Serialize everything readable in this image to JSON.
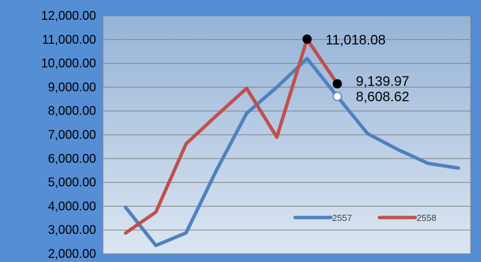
{
  "chart_data": {
    "type": "line",
    "title": "",
    "xlabel": "",
    "ylabel": "",
    "ylim": [
      2000,
      12000
    ],
    "yticks": [
      "2,000.00",
      "3,000.00",
      "4,000.00",
      "5,000.00",
      "6,000.00",
      "7,000.00",
      "8,000.00",
      "9,000.00",
      "10,000.00",
      "11,000.00",
      "12,000.00"
    ],
    "grid": true,
    "legend_position": "bottom-right",
    "x": [
      1,
      2,
      3,
      4,
      5,
      6,
      7,
      8,
      9,
      10,
      11,
      12
    ],
    "series": [
      {
        "name": "2557",
        "color": "#4F81BD",
        "values": [
          3950,
          2350,
          2880,
          5500,
          7900,
          9000,
          10200,
          8608.62,
          7050,
          6380,
          5800,
          5600
        ]
      },
      {
        "name": "2558",
        "color": "#C0504D",
        "values": [
          2870,
          3750,
          6620,
          7800,
          8950,
          6900,
          11018.08,
          9139.97,
          null,
          null,
          null,
          null
        ]
      }
    ],
    "annotations": [
      {
        "series": 1,
        "index": 6,
        "text": "11,018.08",
        "marker": "black"
      },
      {
        "series": 1,
        "index": 7,
        "text": "9,139.97",
        "marker": "black"
      },
      {
        "series": 0,
        "index": 7,
        "text": "8,608.62",
        "marker": "white"
      }
    ],
    "colors": {
      "frame": "#558ED5",
      "plot_top": "#95B3D7",
      "plot_bottom": "#DCE6F2",
      "grid": "#7F7F7F"
    }
  }
}
